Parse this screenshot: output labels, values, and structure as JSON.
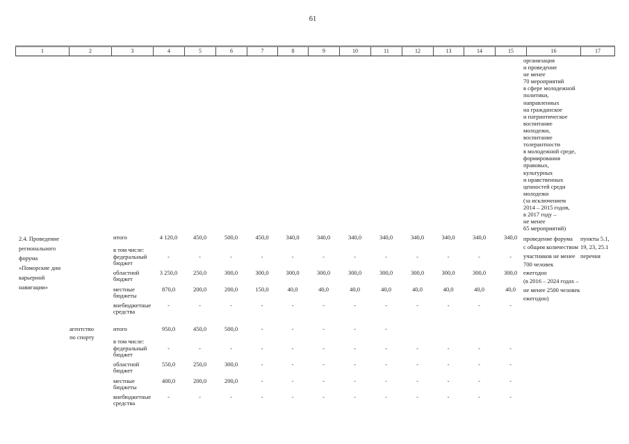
{
  "page_number": "61",
  "header_columns": [
    "1",
    "2",
    "3",
    "4",
    "5",
    "6",
    "7",
    "8",
    "9",
    "10",
    "11",
    "12",
    "13",
    "14",
    "15",
    "16",
    "17"
  ],
  "carryover": {
    "expected_results": "организация\nи проведение\nне менее\n70 мероприятий\nв сфере молодежной\nполитики,\nнаправленных\nна гражданское\nи патриотическое\nвоспитание\nмолодежи,\nвоспитание\nтолерантности\nв молодежной среде,\nформирования\nправовых,\nкультурных\nи нравственных\nценностей среди\nмолодежи\n(за исключением\n2014 – 2015 годов,\nв 2017 году –\nне менее\n65 мероприятий)"
  },
  "blocks": [
    {
      "title": "2.4. Проведение\nрегионального\nфорума\n«Поморские дни\nкарьерной\nнавигации»",
      "executor": "",
      "budget_rows": [
        {
          "label": "итого",
          "sub_label": "в том числе:",
          "values": [
            "4 120,0",
            "450,0",
            "500,0",
            "450,0",
            "340,0",
            "340,0",
            "340,0",
            "340,0",
            "340,0",
            "340,0",
            "340,0",
            "340,0"
          ]
        },
        {
          "label": "федеральный\nбюджет",
          "values": [
            "-",
            "-",
            "-",
            "-",
            "-",
            "-",
            "-",
            "-",
            "-",
            "-",
            "-",
            "-"
          ]
        },
        {
          "label": "областной\nбюджет",
          "values": [
            "3 250,0",
            "250,0",
            "300,0",
            "300,0",
            "300,0",
            "300,0",
            "300,0",
            "300,0",
            "300,0",
            "300,0",
            "300,0",
            "300,0"
          ]
        },
        {
          "label": "местные\nбюджеты",
          "values": [
            "870,0",
            "200,0",
            "200,0",
            "150,0",
            "40,0",
            "40,0",
            "40,0",
            "40,0",
            "40,0",
            "40,0",
            "40,0",
            "40,0"
          ]
        },
        {
          "label": "внебюджетные\nсредства",
          "values": [
            "-",
            "-",
            "-",
            "-",
            "-",
            "-",
            "-",
            "-",
            "-",
            "-",
            "-",
            "-"
          ]
        }
      ],
      "expected_results": "проведение форума\nс общим количеством\nучастников не менее\n700 человек\nежегодно\n(в 2016 – 2024 годах –\nне менее 2500 человек\nежегодно)",
      "list_reference": "пункты 5.1,\n19, 23, 25.1\nперечня"
    },
    {
      "title": "",
      "executor": "агентство\nпо спорту",
      "budget_rows": [
        {
          "label": "итого",
          "sub_label": "в том числе:",
          "values": [
            "950,0",
            "450,0",
            "500,0",
            "-",
            "-",
            "-",
            "-",
            "-",
            "",
            "",
            "",
            ""
          ]
        },
        {
          "label": "федеральный\nбюджет",
          "values": [
            "-",
            "-",
            "-",
            "-",
            "-",
            "-",
            "-",
            "-",
            "-",
            "-",
            "-",
            "-"
          ]
        },
        {
          "label": "областной\nбюджет",
          "values": [
            "550,0",
            "250,0",
            "300,0",
            "-",
            "-",
            "-",
            "-",
            "-",
            "-",
            "-",
            "-",
            "-"
          ]
        },
        {
          "label": "местные\nбюджеты",
          "values": [
            "400,0",
            "200,0",
            "200,0",
            "-",
            "-",
            "-",
            "-",
            "-",
            "-",
            "-",
            "-",
            "-"
          ]
        },
        {
          "label": "внебюджетные\nсредства",
          "values": [
            "-",
            "-",
            "-",
            "-",
            "-",
            "-",
            "-",
            "-",
            "-",
            "-",
            "-",
            "-"
          ]
        }
      ],
      "expected_results": "",
      "list_reference": ""
    }
  ]
}
